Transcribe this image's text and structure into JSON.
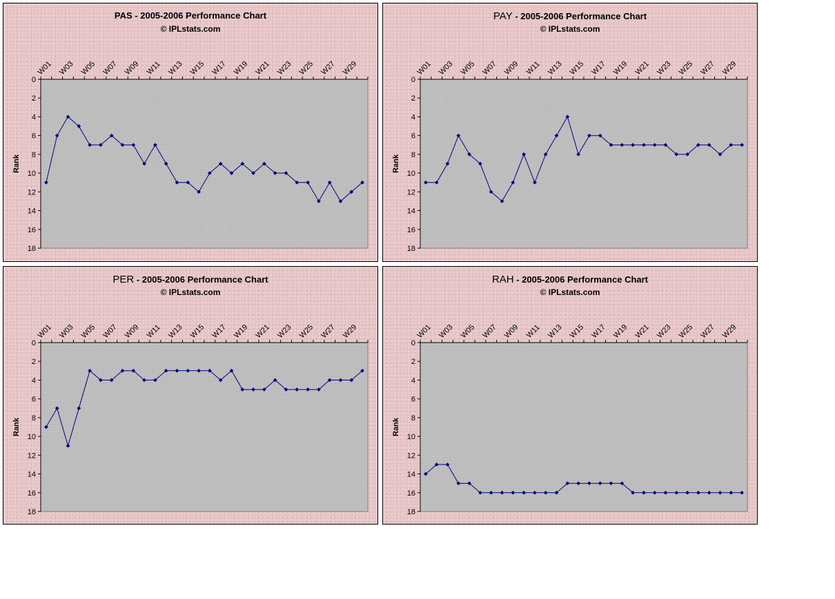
{
  "chart_data": [
    {
      "type": "line",
      "team": "PAS",
      "title_suffix": " - 2005-2006 Performance Chart",
      "subtitle": "© IPLstats.com",
      "ylabel": "Rank",
      "ylim": [
        0,
        18
      ],
      "yticks": [
        "0",
        "2",
        "4",
        "6",
        "8",
        "10",
        "12",
        "14",
        "16",
        "18"
      ],
      "xtick_labels": [
        "W01",
        "W03",
        "W05",
        "W07",
        "W09",
        "W11",
        "W13",
        "W15",
        "W17",
        "W19",
        "W21",
        "W23",
        "W25",
        "W27",
        "W29"
      ],
      "values": [
        11,
        6,
        4,
        5,
        7,
        7,
        6,
        7,
        7,
        9,
        7,
        9,
        11,
        11,
        12,
        10,
        9,
        10,
        9,
        10,
        9,
        10,
        10,
        11,
        11,
        13,
        11,
        13,
        12,
        11
      ]
    },
    {
      "type": "line",
      "team": "PAY",
      "title_suffix": " - 2005-2006 Performance Chart",
      "subtitle": "© IPLstats.com",
      "ylabel": "Rank",
      "ylim": [
        0,
        18
      ],
      "yticks": [
        "0",
        "2",
        "4",
        "6",
        "8",
        "10",
        "12",
        "14",
        "16",
        "18"
      ],
      "xtick_labels": [
        "W01",
        "W03",
        "W05",
        "W07",
        "W09",
        "W11",
        "W13",
        "W15",
        "W17",
        "W19",
        "W21",
        "W23",
        "W25",
        "W27",
        "W29"
      ],
      "values": [
        11,
        11,
        9,
        6,
        8,
        9,
        12,
        13,
        11,
        8,
        11,
        8,
        6,
        4,
        8,
        6,
        6,
        7,
        7,
        7,
        7,
        7,
        7,
        8,
        8,
        7,
        7,
        8,
        7,
        7
      ]
    },
    {
      "type": "line",
      "team": "PER",
      "title_suffix": " - 2005-2006 Performance Chart",
      "subtitle": "© IPLstats.com",
      "ylabel": "Rank",
      "ylim": [
        0,
        18
      ],
      "yticks": [
        "0",
        "2",
        "4",
        "6",
        "8",
        "10",
        "12",
        "14",
        "16",
        "18"
      ],
      "xtick_labels": [
        "W01",
        "W03",
        "W05",
        "W07",
        "W09",
        "W11",
        "W13",
        "W15",
        "W17",
        "W19",
        "W21",
        "W23",
        "W25",
        "W27",
        "W29"
      ],
      "values": [
        9,
        7,
        11,
        7,
        3,
        4,
        4,
        3,
        3,
        4,
        4,
        3,
        3,
        3,
        3,
        3,
        4,
        3,
        5,
        5,
        5,
        4,
        5,
        5,
        5,
        5,
        4,
        4,
        4,
        3
      ]
    },
    {
      "type": "line",
      "team": "RAH",
      "title_suffix": " - 2005-2006 Performance Chart",
      "subtitle": "© IPLstats.com",
      "ylabel": "Rank",
      "ylim": [
        0,
        18
      ],
      "yticks": [
        "0",
        "2",
        "4",
        "6",
        "8",
        "10",
        "12",
        "14",
        "16",
        "18"
      ],
      "xtick_labels": [
        "W01",
        "W03",
        "W05",
        "W07",
        "W09",
        "W11",
        "W13",
        "W15",
        "W17",
        "W19",
        "W21",
        "W23",
        "W25",
        "W27",
        "W29"
      ],
      "values": [
        14,
        13,
        13,
        15,
        15,
        16,
        16,
        16,
        16,
        16,
        16,
        16,
        16,
        15,
        15,
        15,
        15,
        15,
        15,
        16,
        16,
        16,
        16,
        16,
        16,
        16,
        16,
        16,
        16,
        16
      ]
    }
  ],
  "colors": {
    "line": "#000080",
    "plot_bg": "#c0c0c0",
    "panel_bg": "#e6c4c6"
  }
}
